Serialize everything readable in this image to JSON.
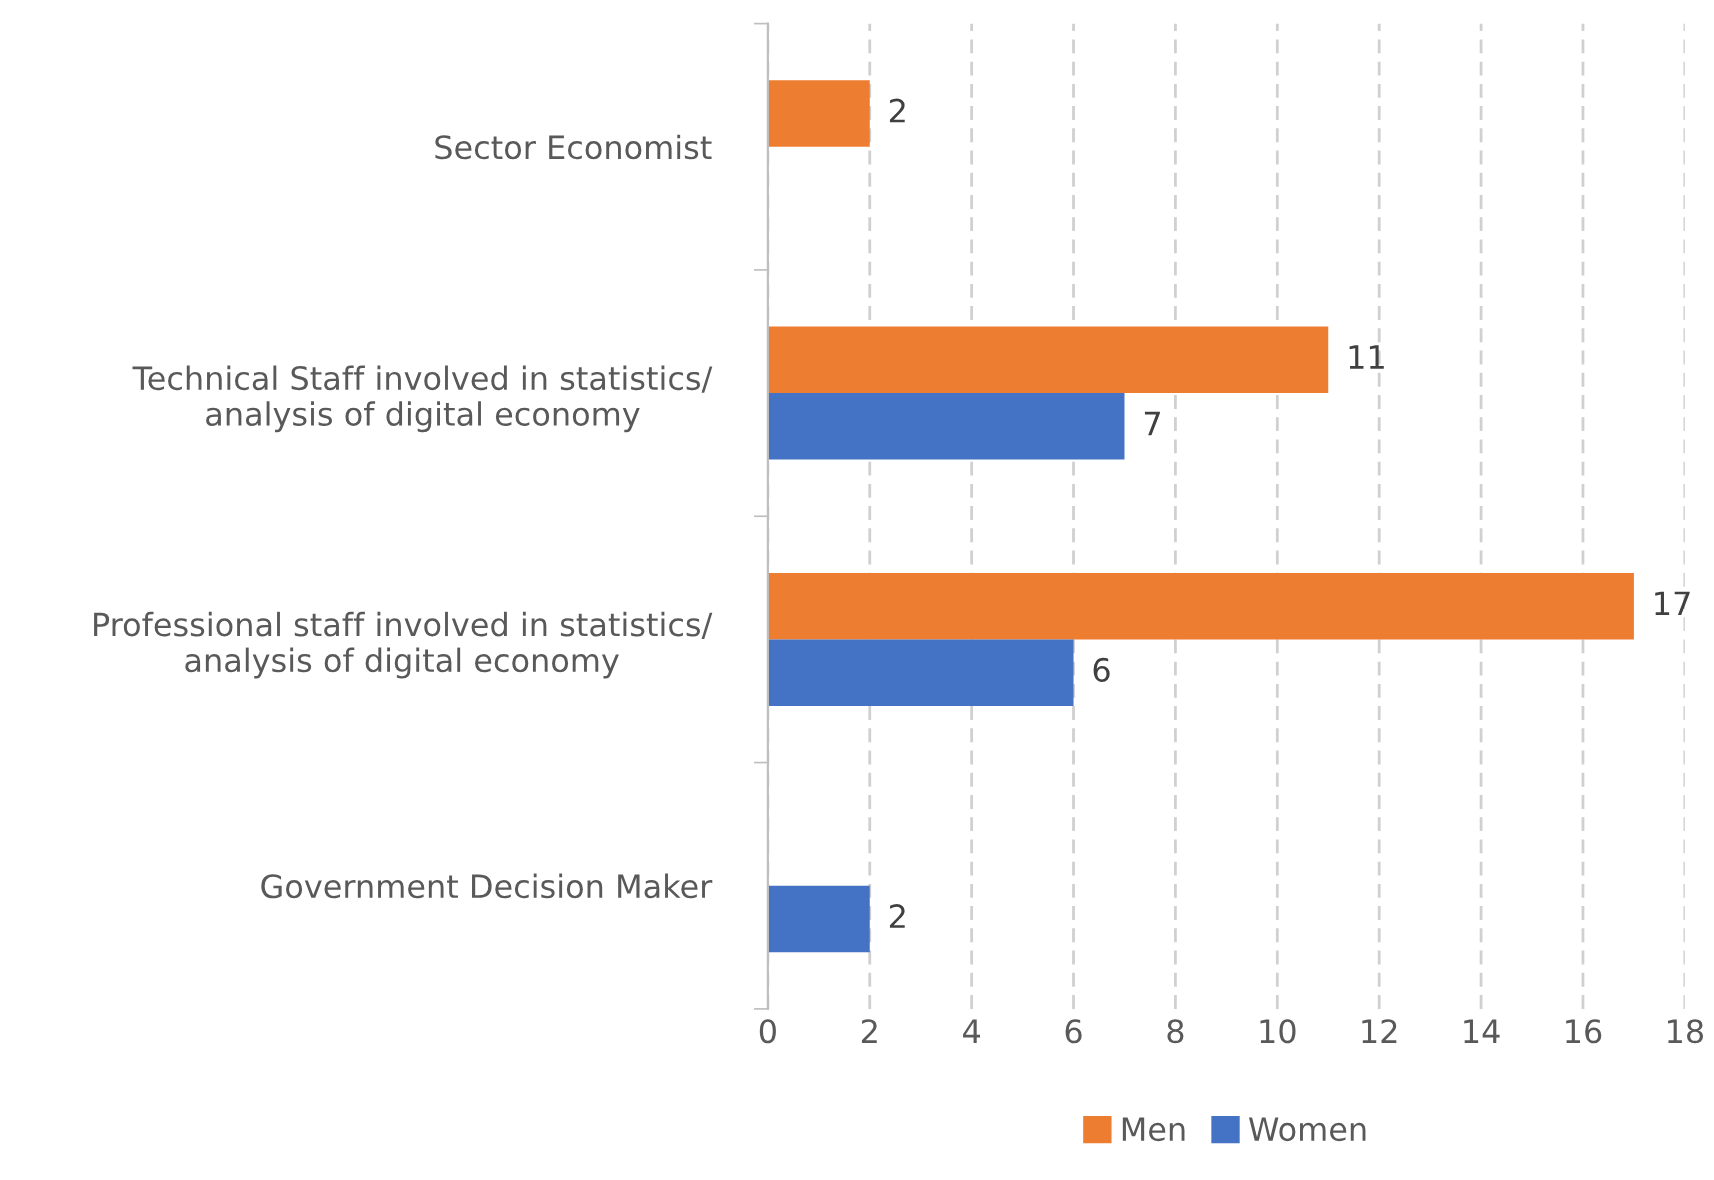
{
  "chart_data": {
    "type": "bar",
    "orientation": "horizontal",
    "categories": [
      "Sector Economist",
      "Technical Staff involved in statistics/\nanalysis of digital economy",
      "Professional staff involved in statistics/\nanalysis of digital economy",
      "Government Decision Maker"
    ],
    "series": [
      {
        "name": "Men",
        "color": "#ed7d31",
        "values": [
          2,
          11,
          17,
          null
        ]
      },
      {
        "name": "Women",
        "color": "#4472c4",
        "values": [
          null,
          7,
          6,
          2
        ]
      }
    ],
    "xlim": [
      0,
      18
    ],
    "xticks": [
      0,
      2,
      4,
      6,
      8,
      10,
      12,
      14,
      16,
      18
    ],
    "grid": "x",
    "legend": "bottom",
    "data_labels": true
  }
}
